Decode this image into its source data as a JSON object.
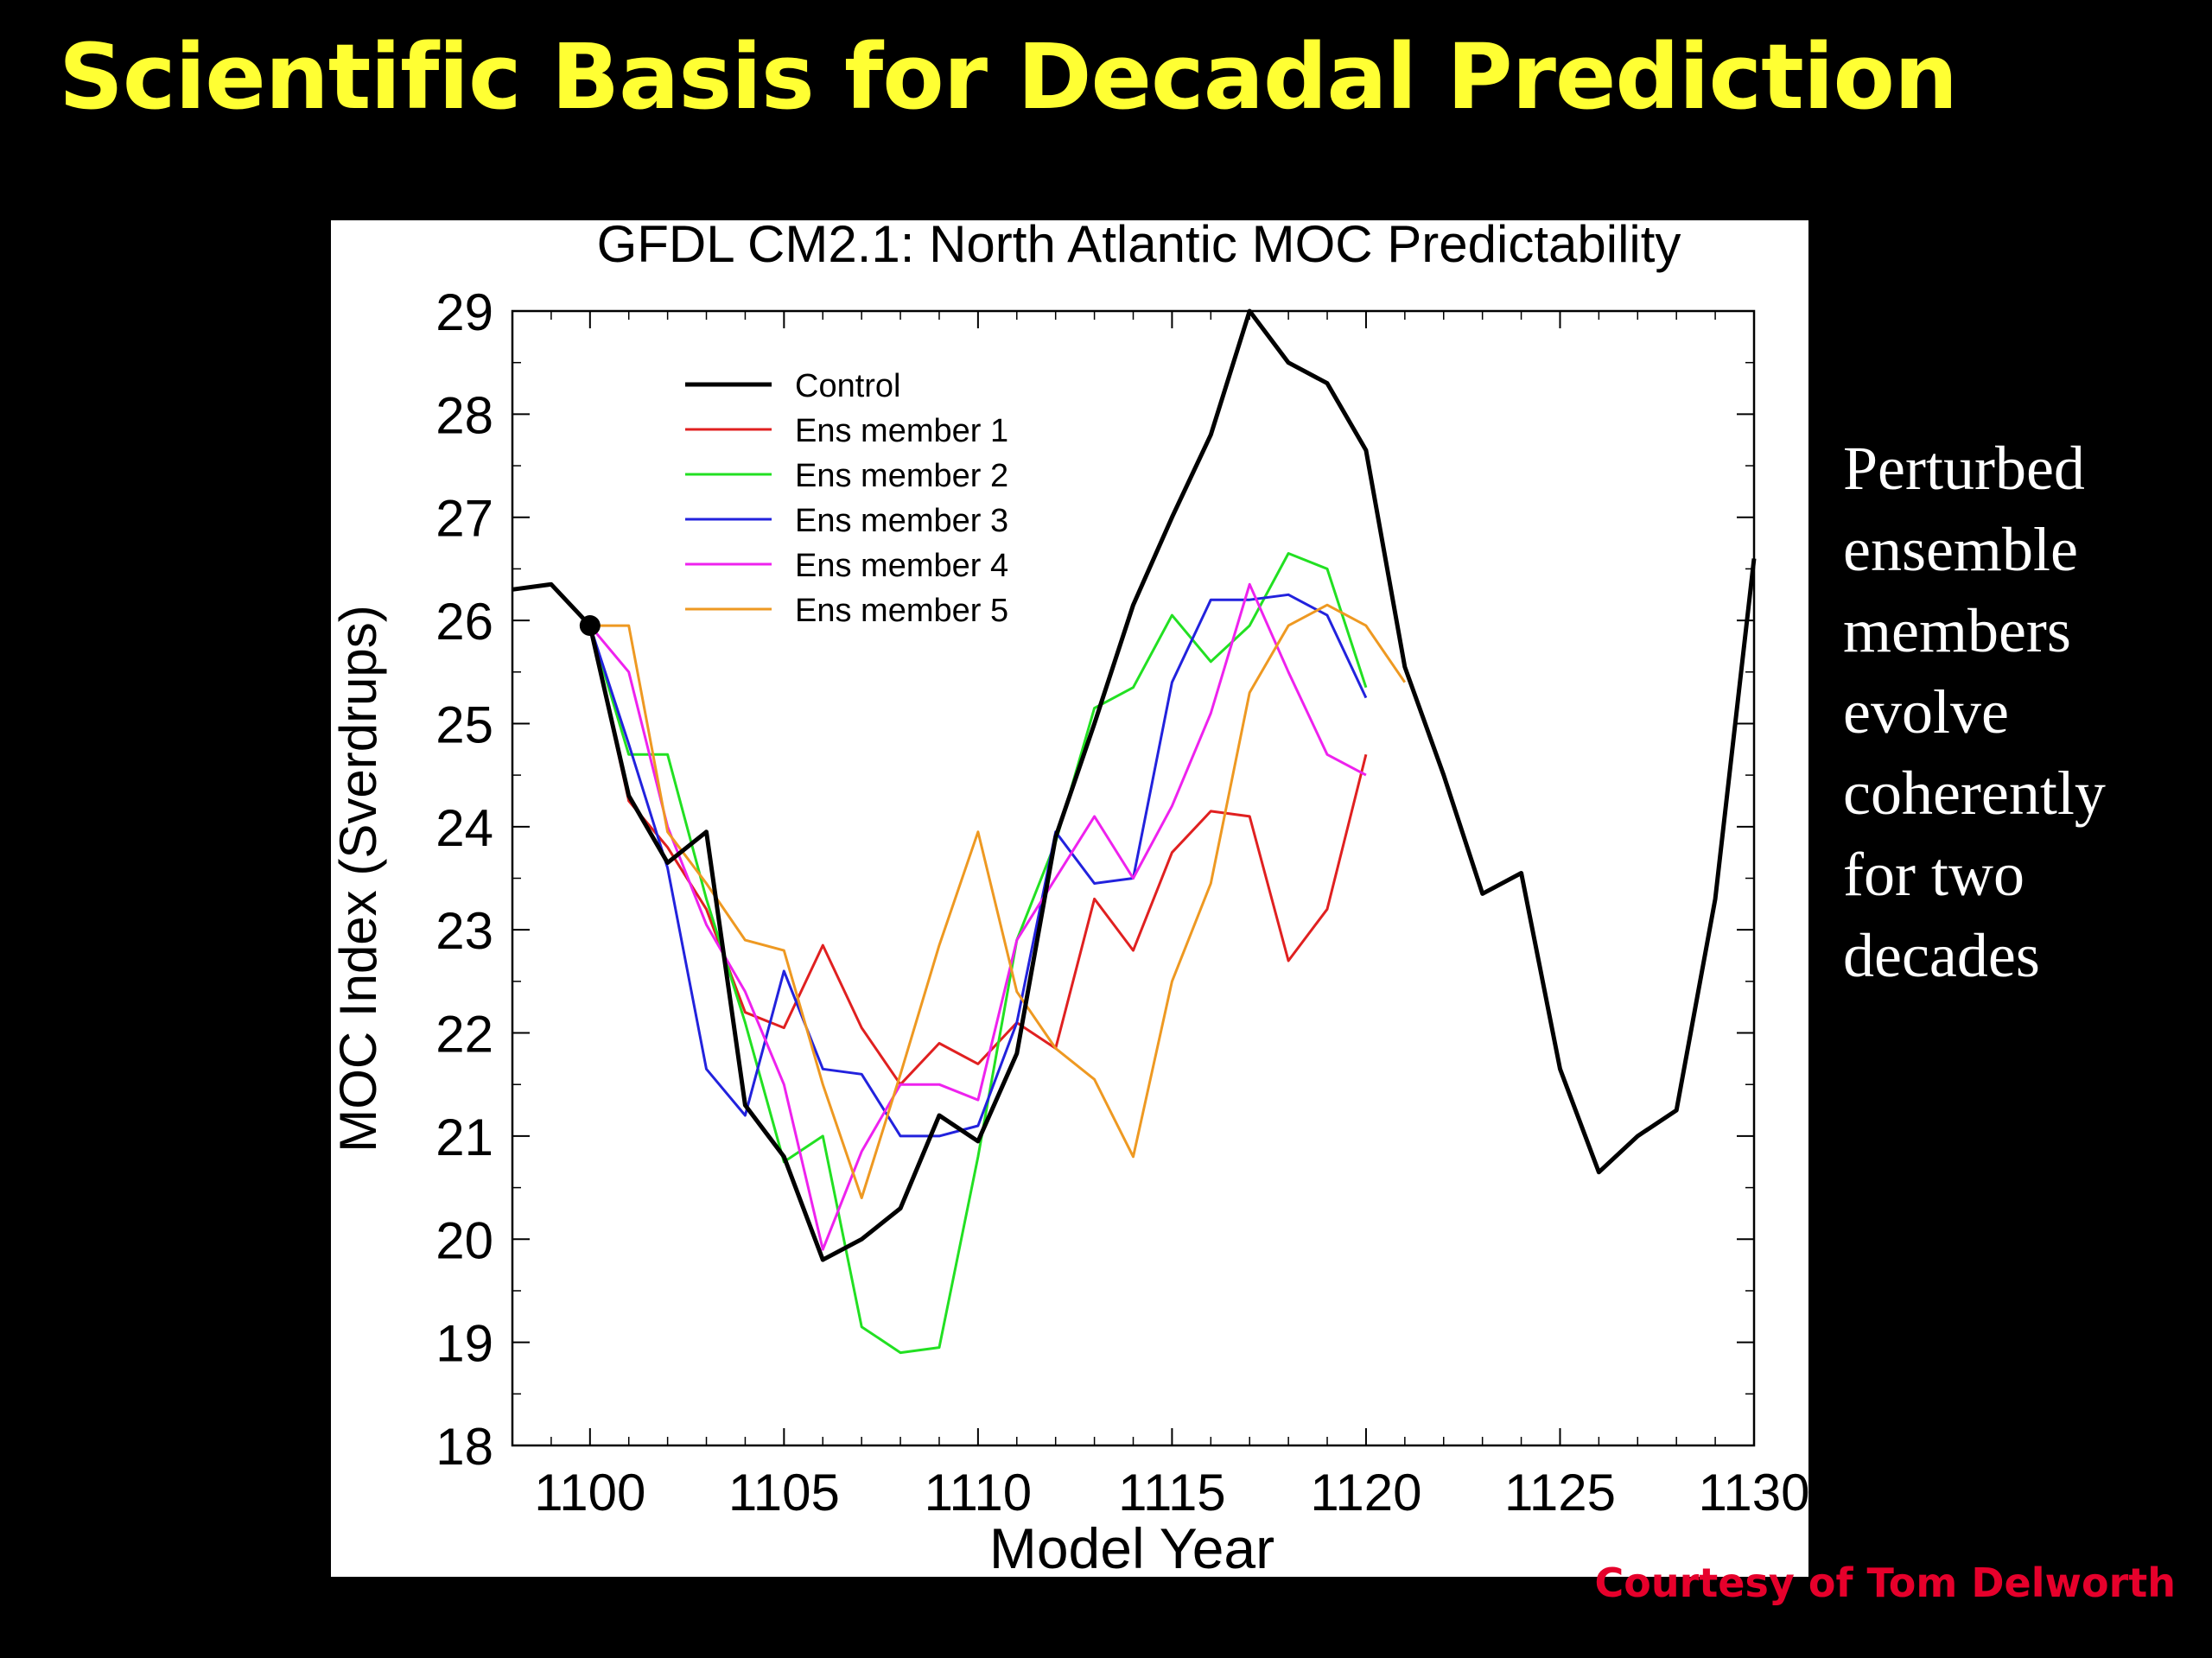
{
  "slide": {
    "title": "Scientific Basis for Decadal Prediction",
    "side_note_lines": [
      "Perturbed",
      "ensemble",
      "members",
      "evolve",
      "coherently",
      "for two",
      "decades"
    ],
    "credit": "Courtesy of Tom Delworth"
  },
  "colors": {
    "background": "#000000",
    "title": "#FFFF33",
    "credit": "#E6002B",
    "side_note": "#FFFFFF"
  },
  "chart_data": {
    "type": "line",
    "title": "GFDL CM2.1: North Atlantic MOC Predictability",
    "xlabel": "Model Year",
    "ylabel": "MOC Index (Sverdrups)",
    "xlim": [
      1098,
      1130
    ],
    "ylim": [
      18,
      29
    ],
    "xticks": [
      1100,
      1105,
      1110,
      1115,
      1120,
      1125,
      1130
    ],
    "yticks": [
      18,
      19,
      20,
      21,
      22,
      23,
      24,
      25,
      26,
      27,
      28,
      29
    ],
    "grid": false,
    "legend_position": "top-left",
    "start_marker": {
      "x": 1100,
      "y": 25.95
    },
    "series": [
      {
        "name": "Control",
        "color": "#000000",
        "width": 5,
        "x": [
          1098,
          1099,
          1100,
          1101,
          1102,
          1103,
          1104,
          1105,
          1106,
          1107,
          1108,
          1109,
          1110,
          1111,
          1112,
          1113,
          1114,
          1115,
          1116,
          1117,
          1118,
          1119,
          1120,
          1121,
          1122,
          1123,
          1124,
          1125,
          1126,
          1127,
          1128,
          1129,
          1130
        ],
        "y": [
          26.3,
          26.35,
          25.95,
          24.3,
          23.65,
          23.95,
          21.3,
          20.8,
          19.8,
          20.0,
          20.3,
          21.2,
          20.95,
          21.8,
          23.9,
          25.0,
          26.15,
          27.0,
          27.8,
          29.0,
          28.5,
          28.3,
          27.65,
          25.55,
          24.5,
          23.35,
          23.55,
          21.65,
          20.65,
          21.0,
          21.25,
          23.3,
          26.6
        ]
      },
      {
        "name": "Ens member 1",
        "color": "#E02020",
        "width": 3,
        "x": [
          1100,
          1101,
          1102,
          1103,
          1104,
          1105,
          1106,
          1107,
          1108,
          1109,
          1110,
          1111,
          1112,
          1113,
          1114,
          1115,
          1116,
          1117,
          1118,
          1119,
          1120
        ],
        "y": [
          25.95,
          24.25,
          23.8,
          23.2,
          22.2,
          22.05,
          22.85,
          22.05,
          21.5,
          21.9,
          21.7,
          22.1,
          21.85,
          23.3,
          22.8,
          23.75,
          24.15,
          24.1,
          22.7,
          23.2,
          24.7
        ]
      },
      {
        "name": "Ens member 2",
        "color": "#22E022",
        "width": 3,
        "x": [
          1100,
          1101,
          1102,
          1103,
          1104,
          1105,
          1106,
          1107,
          1108,
          1109,
          1110,
          1111,
          1112,
          1113,
          1114,
          1115,
          1116,
          1117,
          1118,
          1119,
          1120
        ],
        "y": [
          25.95,
          24.7,
          24.7,
          23.3,
          22.1,
          20.75,
          21.0,
          19.15,
          18.9,
          18.95,
          20.8,
          22.9,
          23.85,
          25.15,
          25.35,
          26.05,
          25.6,
          25.95,
          26.65,
          26.5,
          25.35
        ]
      },
      {
        "name": "Ens member 3",
        "color": "#2222DD",
        "width": 3,
        "x": [
          1100,
          1101,
          1102,
          1103,
          1104,
          1105,
          1106,
          1107,
          1108,
          1109,
          1110,
          1111,
          1112,
          1113,
          1114,
          1115,
          1116,
          1117,
          1118,
          1119,
          1120
        ],
        "y": [
          25.95,
          24.8,
          23.6,
          21.65,
          21.2,
          22.6,
          21.65,
          21.6,
          21.0,
          21.0,
          21.1,
          22.1,
          23.95,
          23.45,
          23.5,
          25.4,
          26.2,
          26.2,
          26.25,
          26.05,
          25.25
        ]
      },
      {
        "name": "Ens member 4",
        "color": "#EE22EE",
        "width": 3,
        "x": [
          1100,
          1101,
          1102,
          1103,
          1104,
          1105,
          1106,
          1107,
          1108,
          1109,
          1110,
          1111,
          1112,
          1113,
          1114,
          1115,
          1116,
          1117,
          1118,
          1119,
          1120
        ],
        "y": [
          25.95,
          25.5,
          24.0,
          23.05,
          22.4,
          21.5,
          19.9,
          20.85,
          21.5,
          21.5,
          21.35,
          22.9,
          23.5,
          24.1,
          23.5,
          24.2,
          25.1,
          26.35,
          25.5,
          24.7,
          24.5
        ]
      },
      {
        "name": "Ens member 5",
        "color": "#EE9922",
        "width": 3,
        "x": [
          1100,
          1101,
          1102,
          1103,
          1104,
          1105,
          1106,
          1107,
          1108,
          1109,
          1110,
          1111,
          1112,
          1113,
          1114,
          1115,
          1116,
          1117,
          1118,
          1119,
          1120,
          1121
        ],
        "y": [
          25.95,
          25.95,
          23.95,
          23.45,
          22.9,
          22.8,
          21.5,
          20.4,
          21.6,
          22.85,
          23.95,
          22.4,
          21.85,
          21.55,
          20.8,
          22.5,
          23.45,
          25.3,
          25.95,
          26.15,
          25.95,
          25.4
        ]
      }
    ]
  }
}
